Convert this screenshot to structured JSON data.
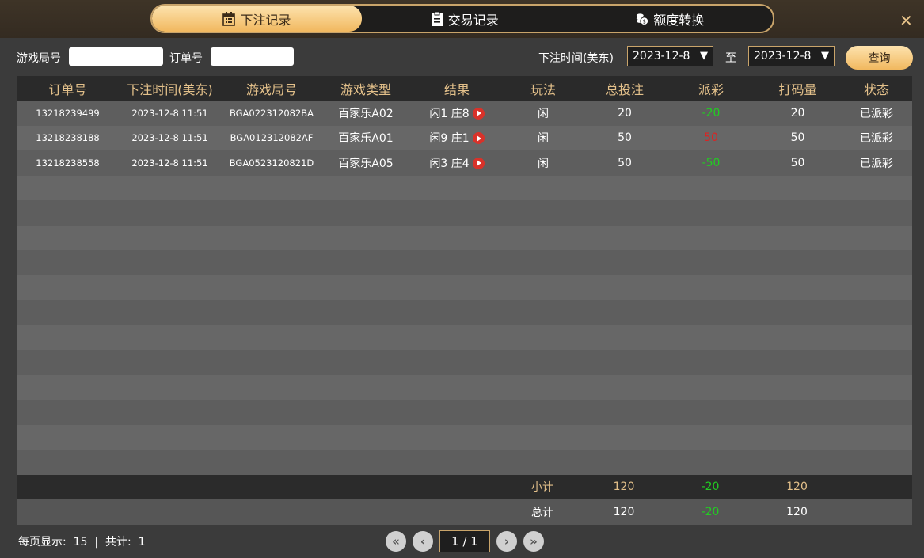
{
  "tabs": [
    {
      "label": "下注记录",
      "icon": "calendar-icon",
      "active": true
    },
    {
      "label": "交易记录",
      "icon": "clipboard-icon",
      "active": false
    },
    {
      "label": "额度转换",
      "icon": "coins-icon",
      "active": false
    }
  ],
  "close_label": "✕",
  "filter": {
    "round_label": "游戏局号",
    "round_value": "",
    "order_label": "订单号",
    "order_value": "",
    "time_label": "下注时间(美东)",
    "from": "2023-12-8",
    "to_label": "至",
    "to": "2023-12-8",
    "query_label": "查询"
  },
  "table": {
    "headers": [
      "订单号",
      "下注时间(美东)",
      "游戏局号",
      "游戏类型",
      "结果",
      "玩法",
      "总投注",
      "派彩",
      "打码量",
      "状态"
    ],
    "rows": [
      [
        "13218239499",
        "2023-12-8 11:51",
        "BGA022312082BA",
        "百家乐A02",
        "闲1 庄8",
        "闲",
        "20",
        "-20",
        "20",
        "已派彩"
      ],
      [
        "13218238188",
        "2023-12-8 11:51",
        "BGA012312082AF",
        "百家乐A01",
        "闲9 庄1",
        "闲",
        "50",
        "50",
        "50",
        "已派彩"
      ],
      [
        "13218238558",
        "2023-12-8 11:51",
        "BGA0523120821D",
        "百家乐A05",
        "闲3 庄4",
        "闲",
        "50",
        "-50",
        "50",
        "已派彩"
      ]
    ],
    "page_size_rows": 15,
    "subtotal": {
      "label": "小计",
      "bet": "120",
      "payout": "-20",
      "valid": "120"
    },
    "total": {
      "label": "总计",
      "bet": "120",
      "payout": "-20",
      "valid": "120"
    }
  },
  "colors": {
    "accent": "#f1b85f",
    "negative": "#22cc22",
    "positive": "#dd2222"
  },
  "footer": {
    "per_page_label": "每页显示:",
    "per_page": "15",
    "sep": "|",
    "total_label": "共计:",
    "total": "1"
  },
  "pager": {
    "first": "«",
    "prev": "‹",
    "page": "1 / 1",
    "next": "›",
    "last": "»"
  }
}
